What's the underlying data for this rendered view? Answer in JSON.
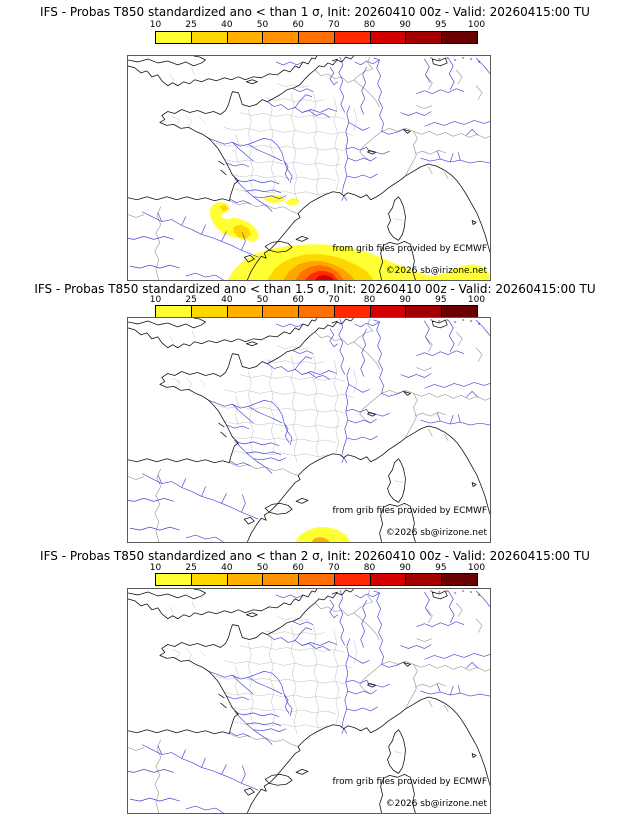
{
  "page": {
    "background": "#ffffff"
  },
  "panels": [
    {
      "title": "IFS - Probas T850  standardized ano < than 1 σ, Init: 20260410 00z - Valid: 20260415:00 TU",
      "threshold_sigma": "1",
      "shaded_regions": [
        "northeast Spain inland blob (10-40%)",
        "two small streaks south of France near Pyrenees (10-25%)",
        "large Mediterranean blob south of Balearic Islands (10-90%, red core at bottom edge)"
      ]
    },
    {
      "title": "IFS - Probas T850  standardized ano < than 1.5 σ, Init: 20260410 00z - Valid: 20260415:00 TU",
      "threshold_sigma": "1.5",
      "shaded_regions": [
        "small Mediterranean blob at bottom edge south of Balearic Islands (10-50%)"
      ]
    },
    {
      "title": "IFS - Probas T850  standardized ano < than 2 σ, Init: 20260410 00z - Valid: 20260415:00 TU",
      "threshold_sigma": "2",
      "shaded_regions": []
    }
  ],
  "colorbar": {
    "labels": [
      "10",
      "25",
      "40",
      "50",
      "60",
      "70",
      "80",
      "90",
      "95",
      "100"
    ],
    "colors": [
      "#ffff33",
      "#ffd700",
      "#ffb000",
      "#ff9400",
      "#ff7000",
      "#ff2a00",
      "#d40000",
      "#a30000",
      "#6b0000"
    ]
  },
  "map": {
    "credit_line1": "from grib files provided by ECMWF",
    "credit_line2": "©2026 sb@irizone.net"
  },
  "colors": {
    "coastline": "#141414",
    "rivers": "#4044d4",
    "departments": "#bdbdbd",
    "country_borders": "#9a9a9a"
  }
}
